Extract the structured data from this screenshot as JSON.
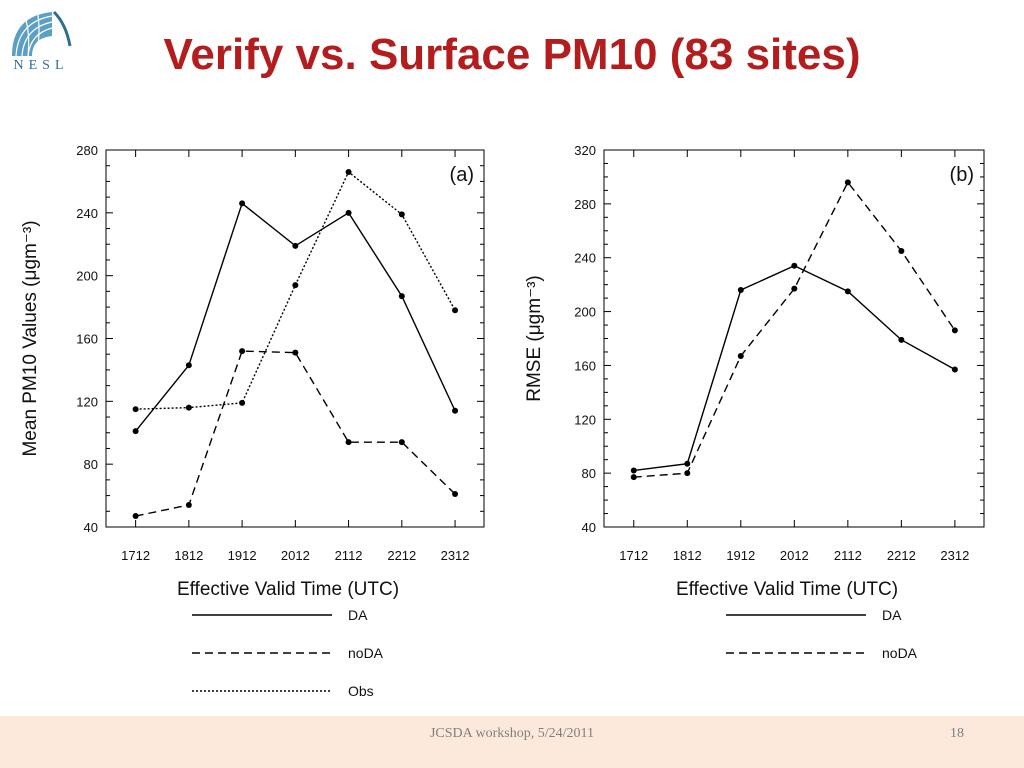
{
  "slide": {
    "title": "Verify vs. Surface PM10 (83 sites)",
    "logo_text": "NESL",
    "footer": "JCSDA workshop, 5/24/2011",
    "page_number": "18"
  },
  "chart_data": [
    {
      "type": "line",
      "panel_label": "(a)",
      "categories": [
        "1712",
        "1812",
        "1912",
        "2012",
        "2112",
        "2212",
        "2312"
      ],
      "xlabel": "Effective Valid Time (UTC)",
      "ylabel": "Mean PM10 Values (μgm⁻³)",
      "ylim": [
        40,
        280
      ],
      "yticks": [
        40,
        80,
        120,
        160,
        200,
        240,
        280
      ],
      "series": [
        {
          "name": "DA",
          "style": "solid",
          "values": [
            101,
            143,
            246,
            219,
            240,
            187,
            114
          ]
        },
        {
          "name": "noDA",
          "style": "dashed",
          "values": [
            47,
            54,
            152,
            151,
            94,
            94,
            61
          ]
        },
        {
          "name": "Obs",
          "style": "dotted",
          "values": [
            115,
            116,
            119,
            194,
            266,
            239,
            178
          ]
        }
      ]
    },
    {
      "type": "line",
      "panel_label": "(b)",
      "categories": [
        "1712",
        "1812",
        "1912",
        "2012",
        "2112",
        "2212",
        "2312"
      ],
      "xlabel": "Effective Valid Time (UTC)",
      "ylabel": "RMSE (μgm⁻³)",
      "ylim": [
        40,
        320
      ],
      "yticks": [
        40,
        80,
        120,
        160,
        200,
        240,
        280,
        320
      ],
      "series": [
        {
          "name": "DA",
          "style": "solid",
          "values": [
            82,
            87,
            216,
            234,
            215,
            179,
            157
          ]
        },
        {
          "name": "noDA",
          "style": "dashed",
          "values": [
            77,
            80,
            167,
            217,
            296,
            245,
            186
          ]
        }
      ]
    }
  ]
}
